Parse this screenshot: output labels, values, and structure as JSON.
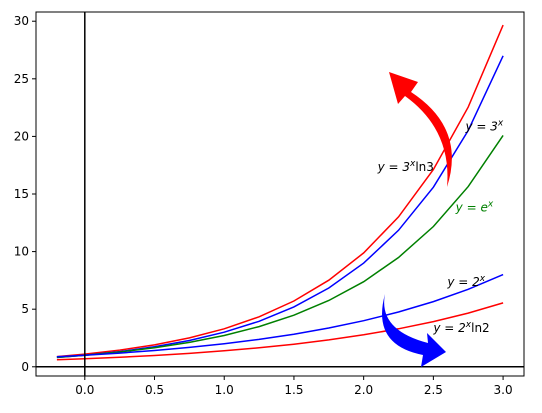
{
  "chart_data": {
    "type": "line",
    "title": "",
    "xlabel": "",
    "ylabel": "",
    "xlim": [
      -0.35,
      3.15
    ],
    "ylim": [
      -0.8,
      30.8
    ],
    "xticks": [
      0.0,
      0.5,
      1.0,
      1.5,
      2.0,
      2.5,
      3.0
    ],
    "xtick_labels": [
      "0.0",
      "0.5",
      "1.0",
      "1.5",
      "2.0",
      "2.5",
      "3.0"
    ],
    "yticks": [
      0,
      5,
      10,
      15,
      20,
      25,
      30
    ],
    "ytick_labels": [
      "0",
      "5",
      "10",
      "15",
      "20",
      "25",
      "30"
    ],
    "grid": false,
    "legend": "none",
    "reference_lines": {
      "x0": true,
      "y0": true
    },
    "x": [
      -0.2,
      0.0,
      0.25,
      0.5,
      0.75,
      1.0,
      1.25,
      1.5,
      1.75,
      2.0,
      2.25,
      2.5,
      2.75,
      3.0
    ],
    "series": [
      {
        "name": "",
        "color": "#ff0000",
        "values": [
          0.887,
          1.099,
          1.446,
          1.903,
          2.504,
          3.296,
          4.338,
          5.709,
          7.513,
          9.888,
          13.014,
          17.127,
          22.541,
          29.662
        ]
      },
      {
        "name": "",
        "color": "#0000ff",
        "values": [
          0.803,
          1.0,
          1.316,
          1.732,
          2.28,
          3.0,
          3.948,
          5.196,
          6.839,
          9.0,
          11.845,
          15.588,
          20.516,
          27.0
        ]
      },
      {
        "name": "",
        "color": "#008000",
        "values": [
          0.819,
          1.0,
          1.284,
          1.649,
          2.117,
          2.718,
          3.49,
          4.482,
          5.755,
          7.389,
          9.488,
          12.182,
          15.643,
          20.086
        ]
      },
      {
        "name": "",
        "color": "#0000ff",
        "values": [
          0.871,
          1.0,
          1.189,
          1.414,
          1.682,
          2.0,
          2.378,
          2.828,
          3.364,
          4.0,
          4.757,
          5.657,
          6.727,
          8.0
        ]
      },
      {
        "name": "",
        "color": "#ff0000",
        "values": [
          0.603,
          0.693,
          0.824,
          0.98,
          1.166,
          1.386,
          1.648,
          1.961,
          2.332,
          2.773,
          3.297,
          3.921,
          4.663,
          5.545
        ]
      }
    ],
    "annotations": [
      {
        "base": "y = 3",
        "sup": "x",
        "suffix": "",
        "color": "#000000",
        "x": 2.73,
        "y": 20.5
      },
      {
        "base": "y = 3",
        "sup": "x",
        "suffix": "ln3",
        "color": "#000000",
        "x": 2.1,
        "y": 17.0
      },
      {
        "base": "y = e",
        "sup": "x",
        "suffix": "",
        "color": "#008000",
        "x": 2.66,
        "y": 13.5
      },
      {
        "base": "y = 2",
        "sup": "x",
        "suffix": "",
        "color": "#000000",
        "x": 2.6,
        "y": 7.0
      },
      {
        "base": "y = 2",
        "sup": "x",
        "suffix": "ln2",
        "color": "#000000",
        "x": 2.5,
        "y": 3.0
      }
    ],
    "arrows": [
      {
        "color": "#ff0000",
        "direction": "up-left"
      },
      {
        "color": "#0000ff",
        "direction": "down-right"
      }
    ]
  }
}
